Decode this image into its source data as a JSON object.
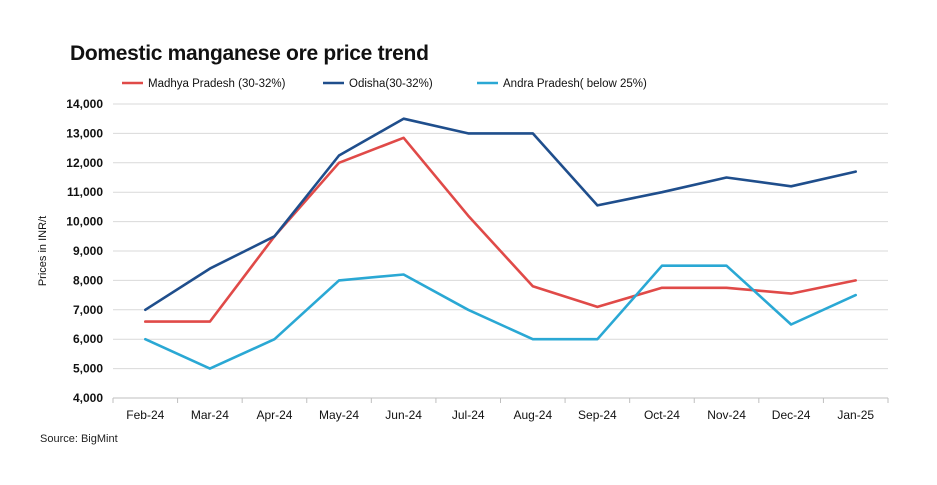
{
  "chart_data": {
    "type": "line",
    "title": "Domestic manganese ore price trend",
    "ylabel": "Prices in INR/t",
    "xlabel": "",
    "categories": [
      "Feb-24",
      "Mar-24",
      "Apr-24",
      "May-24",
      "Jun-24",
      "Jul-24",
      "Aug-24",
      "Sep-24",
      "Oct-24",
      "Nov-24",
      "Dec-24",
      "Jan-25"
    ],
    "ylim": [
      4000,
      14000
    ],
    "yticks": [
      4000,
      5000,
      6000,
      7000,
      8000,
      9000,
      10000,
      11000,
      12000,
      13000,
      14000
    ],
    "ytick_labels": [
      "4,000",
      "5,000",
      "6,000",
      "7,000",
      "8,000",
      "9,000",
      "10,000",
      "11,000",
      "12,000",
      "13,000",
      "14,000"
    ],
    "grid": true,
    "legend_position": "top",
    "series": [
      {
        "name": "Madhya Pradesh (30-32%)",
        "color": "#e04a48",
        "values": [
          6600,
          6600,
          9500,
          12000,
          12850,
          10200,
          7800,
          7100,
          7750,
          7750,
          7550,
          8000
        ]
      },
      {
        "name": "Odisha(30-32%)",
        "color": "#1f4e8c",
        "values": [
          7000,
          8400,
          9500,
          12250,
          13500,
          13000,
          13000,
          10550,
          11000,
          11500,
          11200,
          11700
        ]
      },
      {
        "name": "Andra Pradesh( below 25%)",
        "color": "#2aa8d4",
        "values": [
          6000,
          5000,
          6000,
          8000,
          8200,
          7000,
          6000,
          6000,
          8500,
          8500,
          6500,
          7500
        ]
      }
    ]
  },
  "source": "Source: BigMint"
}
